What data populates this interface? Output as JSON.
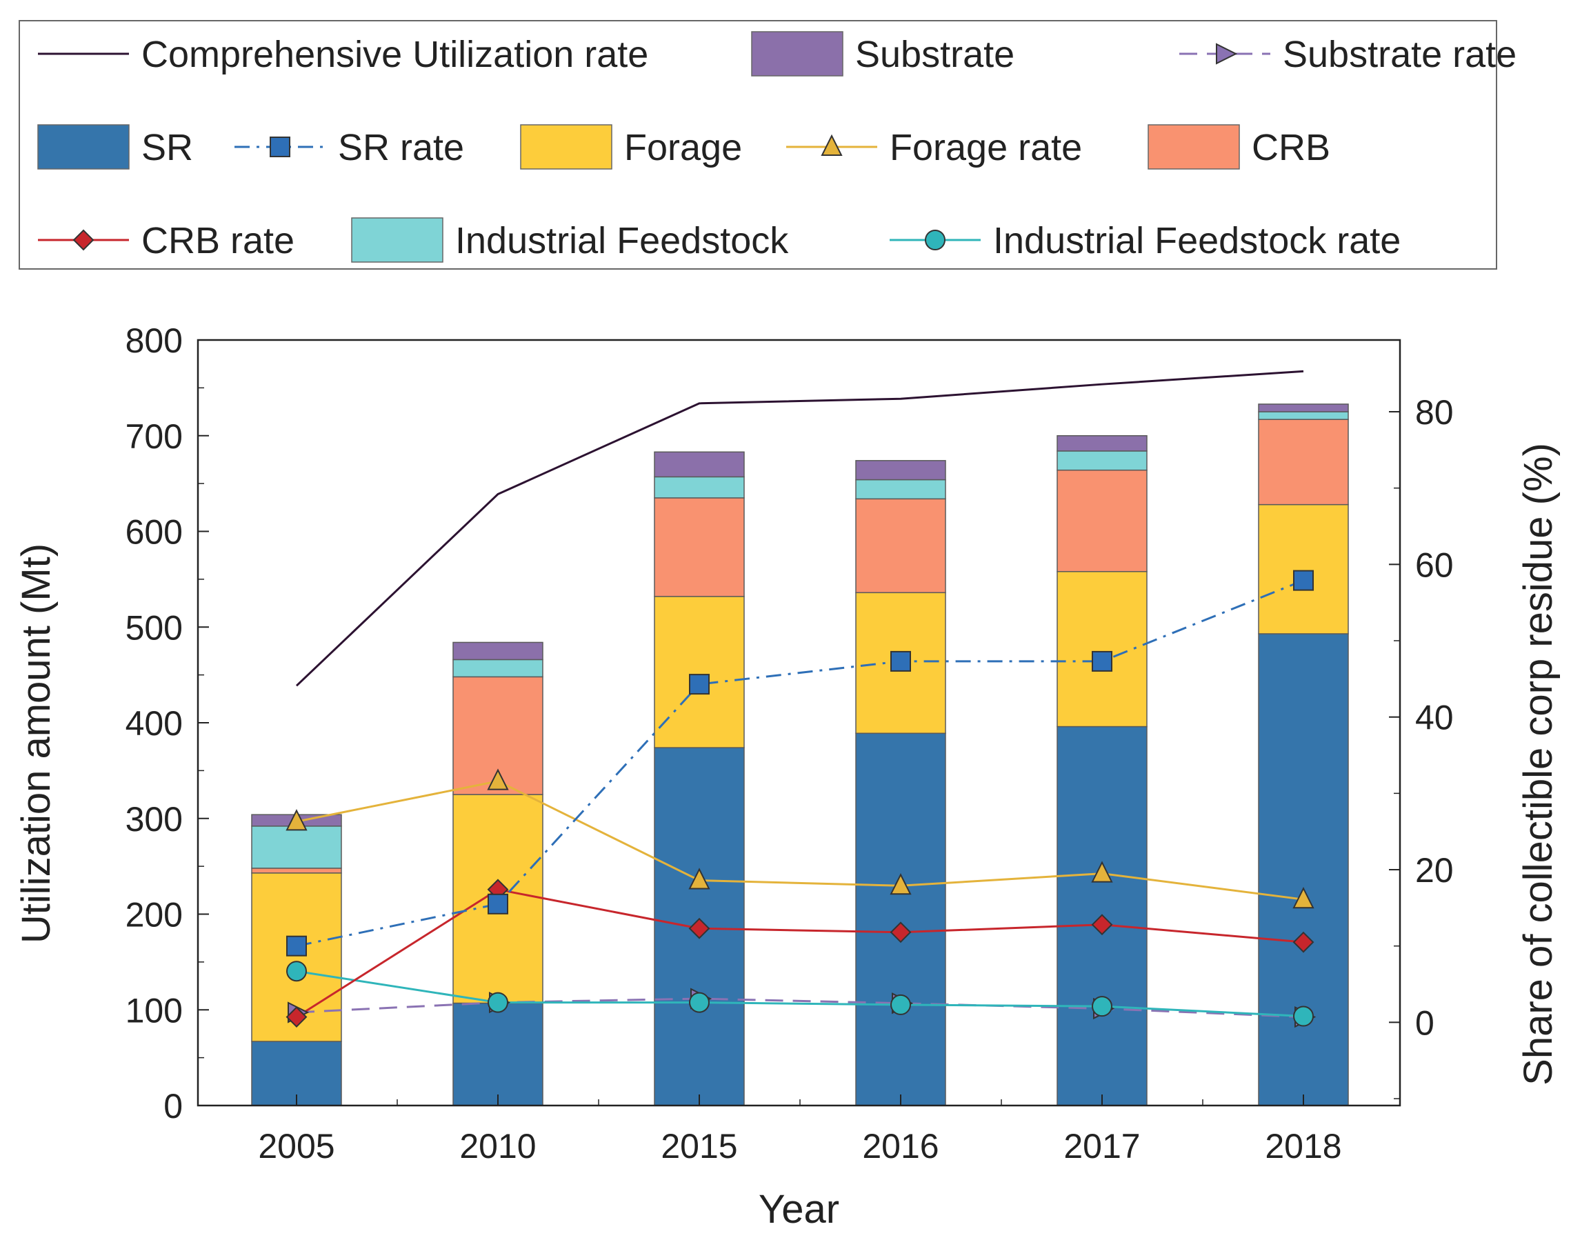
{
  "chart_data": {
    "type": "bar",
    "stacked": true,
    "categories": [
      "2005",
      "2010",
      "2015",
      "2016",
      "2017",
      "2018"
    ],
    "xlabel": "Year",
    "ylabel": "Utilization amount (Mt)",
    "y2label": "Share of collectible corp residue (%)",
    "ylim": [
      0,
      800
    ],
    "yticks": [
      "0",
      "100",
      "200",
      "300",
      "400",
      "500",
      "600",
      "700",
      "800"
    ],
    "y2lim": [
      -10.9,
      89.4
    ],
    "y2ticks": [
      "0",
      "20",
      "40",
      "60",
      "80"
    ],
    "legend_position": "top",
    "series": [
      {
        "name": "SR",
        "type": "bar",
        "color": "#3575ab",
        "values": [
          67,
          107,
          374,
          389,
          396,
          493
        ]
      },
      {
        "name": "Forage",
        "type": "bar",
        "color": "#fdcd3b",
        "values": [
          176,
          218,
          158,
          147,
          162,
          135
        ]
      },
      {
        "name": "CRB",
        "type": "bar",
        "color": "#f99270",
        "values": [
          5,
          123,
          103,
          98,
          106,
          89
        ]
      },
      {
        "name": "Industrial Feedstock",
        "type": "bar",
        "color": "#7fd4d6",
        "values": [
          44,
          18,
          22,
          20,
          20,
          8
        ]
      },
      {
        "name": "Substrate",
        "type": "bar",
        "color": "#8b70aa",
        "values": [
          12,
          18,
          26,
          20,
          16,
          8
        ]
      },
      {
        "name": "Comprehensive Utilization rate",
        "type": "line",
        "axis": "right",
        "color": "#2c1231",
        "values": [
          44.1,
          69.2,
          81.1,
          81.7,
          83.6,
          85.3
        ]
      },
      {
        "name": "SR rate",
        "type": "line",
        "axis": "right",
        "color": "#2e6fb7",
        "marker": "square",
        "values": [
          10.0,
          15.5,
          44.3,
          47.3,
          47.3,
          57.9
        ]
      },
      {
        "name": "Forage rate",
        "type": "line",
        "axis": "right",
        "color": "#e4b33b",
        "marker": "triangle",
        "values": [
          26.3,
          31.6,
          18.6,
          17.9,
          19.5,
          16.1
        ]
      },
      {
        "name": "CRB rate",
        "type": "line",
        "axis": "right",
        "color": "#c7262c",
        "marker": "diamond",
        "values": [
          0.7,
          17.4,
          12.3,
          11.8,
          12.8,
          10.5
        ]
      },
      {
        "name": "Industrial Feedstock rate",
        "type": "line",
        "axis": "right",
        "color": "#2fb5ba",
        "marker": "circle",
        "values": [
          6.7,
          2.6,
          2.6,
          2.3,
          2.1,
          0.8
        ]
      },
      {
        "name": "Substrate rate",
        "type": "line",
        "axis": "right",
        "color": "#8a72b3",
        "marker": "triangle-right",
        "values": [
          1.3,
          2.6,
          3.1,
          2.5,
          1.8,
          0.7
        ]
      }
    ]
  },
  "legend": {
    "items": [
      {
        "label": "Comprehensive Utilization rate",
        "kind": "line",
        "color": "#2c1231"
      },
      {
        "label": "Substrate",
        "kind": "patch",
        "color": "#8b70aa"
      },
      {
        "label": "Substrate rate",
        "kind": "dashed-marker",
        "color": "#8a72b3",
        "marker": "triangle-right"
      },
      {
        "label": "SR",
        "kind": "patch",
        "color": "#3575ab"
      },
      {
        "label": "SR rate",
        "kind": "dashdot-marker",
        "color": "#2e6fb7",
        "marker": "square"
      },
      {
        "label": "Forage",
        "kind": "patch",
        "color": "#fdcd3b"
      },
      {
        "label": "Forage rate",
        "kind": "line-marker",
        "color": "#e4b33b",
        "marker": "triangle"
      },
      {
        "label": "CRB",
        "kind": "patch",
        "color": "#f99270"
      },
      {
        "label": "CRB rate",
        "kind": "line-marker",
        "color": "#c7262c",
        "marker": "diamond"
      },
      {
        "label": "Industrial Feedstock",
        "kind": "patch",
        "color": "#7fd4d6"
      },
      {
        "label": "Industrial Feedstock rate",
        "kind": "line-marker",
        "color": "#2fb5ba",
        "marker": "circle"
      }
    ]
  }
}
